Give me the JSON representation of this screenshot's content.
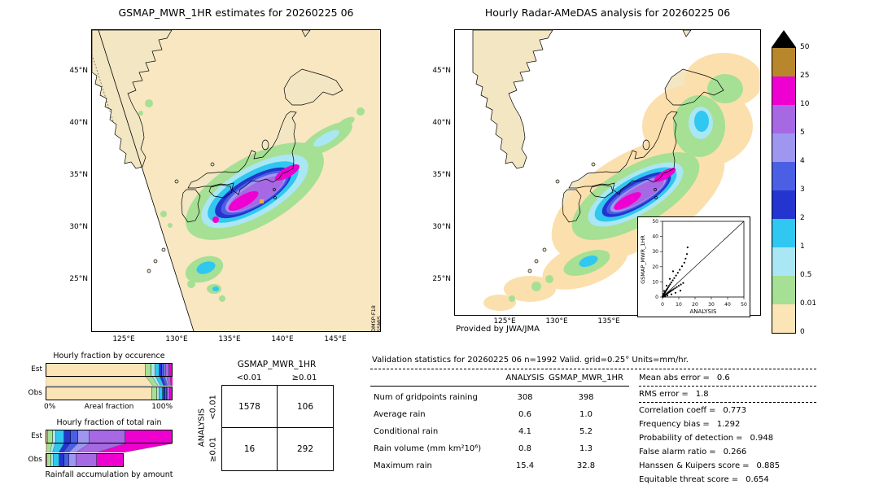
{
  "chart_data": [
    {
      "type": "heatmap",
      "name": "gsmap-mwr-estimate-map",
      "title": "GSMAP_MWR_1HR estimates for 20260225 06",
      "units": "mm/hr",
      "levels": [
        0,
        0.01,
        0.5,
        1,
        2,
        3,
        4,
        5,
        10,
        25,
        50
      ],
      "level_colors": [
        "#fbe4b6",
        "#a5e094",
        "#a9e7f4",
        "#30c7f0",
        "#2334cf",
        "#4a5fe4",
        "#9f97ef",
        "#a768e4",
        "#ee00d0",
        "#b8872c"
      ],
      "over_color": "#000000",
      "lat_ticks": [
        "45°N",
        "40°N",
        "35°N",
        "30°N",
        "25°N"
      ],
      "lon_ticks": [
        "125°E",
        "130°E",
        "135°E",
        "140°E",
        "145°E"
      ],
      "satellite": [
        "DMSP-F18",
        "SSMIS"
      ]
    },
    {
      "type": "heatmap",
      "name": "radar-amedas-analysis-map",
      "title": "Hourly Radar-AMeDAS analysis for 20260225 06",
      "units": "mm/hr",
      "levels": [
        0,
        0.01,
        0.5,
        1,
        2,
        3,
        4,
        5,
        10,
        25,
        50
      ],
      "lat_ticks": [
        "45°N",
        "40°N",
        "35°N",
        "30°N",
        "25°N"
      ],
      "lon_ticks": [
        "125°E",
        "130°E",
        "135°E"
      ],
      "credit": "Provided by JWA/JMA"
    },
    {
      "type": "scatter",
      "name": "gsmap-vs-analysis-inset",
      "xlabel": "ANALYSIS",
      "ylabel": "GSMAP_MWR_1HR",
      "xlim": [
        0,
        50
      ],
      "ylim": [
        0,
        50
      ],
      "ticks": [
        0,
        10,
        20,
        30,
        40,
        50
      ],
      "one_to_one_line": true,
      "points": [
        [
          0.1,
          0.2
        ],
        [
          0.2,
          0.1
        ],
        [
          0.2,
          0.5
        ],
        [
          0.3,
          0.3
        ],
        [
          0.4,
          0.8
        ],
        [
          0.4,
          0.2
        ],
        [
          0.5,
          0.5
        ],
        [
          0.5,
          1.2
        ],
        [
          0.6,
          0.3
        ],
        [
          0.7,
          1.5
        ],
        [
          0.8,
          0.6
        ],
        [
          0.9,
          1.9
        ],
        [
          1.0,
          0.8
        ],
        [
          1.1,
          2.3
        ],
        [
          1.2,
          1.0
        ],
        [
          1.4,
          2.8
        ],
        [
          1.5,
          1.2
        ],
        [
          1.7,
          3.3
        ],
        [
          1.8,
          1.5
        ],
        [
          2.0,
          3.9
        ],
        [
          2.2,
          1.8
        ],
        [
          2.4,
          4.6
        ],
        [
          2.6,
          2.1
        ],
        [
          2.9,
          5.4
        ],
        [
          3.1,
          2.5
        ],
        [
          3.4,
          6.3
        ],
        [
          3.7,
          2.9
        ],
        [
          4.0,
          7.3
        ],
        [
          4.3,
          3.4
        ],
        [
          4.7,
          8.4
        ],
        [
          5.0,
          3.9
        ],
        [
          5.4,
          9.6
        ],
        [
          5.8,
          4.5
        ],
        [
          6.3,
          11.0
        ],
        [
          6.7,
          5.1
        ],
        [
          7.2,
          12.5
        ],
        [
          7.7,
          5.8
        ],
        [
          8.3,
          14.2
        ],
        [
          8.8,
          6.6
        ],
        [
          9.4,
          16.0
        ],
        [
          10.0,
          7.4
        ],
        [
          10.6,
          18.0
        ],
        [
          11.3,
          8.3
        ],
        [
          12.0,
          20.3
        ],
        [
          12.7,
          9.3
        ],
        [
          13.4,
          22.7
        ],
        [
          14.2,
          25.4
        ],
        [
          15.0,
          28.4
        ],
        [
          15.4,
          32.8
        ],
        [
          0.3,
          1.0
        ],
        [
          0.8,
          2.2
        ],
        [
          1.6,
          0.4
        ],
        [
          3.0,
          1.0
        ],
        [
          5.5,
          1.8
        ],
        [
          8.0,
          2.8
        ],
        [
          11.0,
          4.2
        ],
        [
          2.5,
          7.5
        ],
        [
          4.5,
          12.0
        ],
        [
          6.5,
          17.0
        ],
        [
          1.0,
          4.0
        ]
      ]
    },
    {
      "type": "bar",
      "name": "hourly-fraction-by-occurrence",
      "title": "Hourly fraction by occurence",
      "stacked": true,
      "orientation": "horizontal",
      "categories": [
        "Est",
        "Obs"
      ],
      "axis": {
        "min": "0%",
        "label": "Areal fraction",
        "max": "100%"
      },
      "classes": [
        "no rain",
        "0.01-0.5",
        "0.5-1",
        "1-2",
        "2-3",
        "3-4",
        "4-5",
        "5-10",
        "10-25"
      ],
      "colors": [
        "#fbe4b6",
        "#a5e094",
        "#a9e7f4",
        "#30c7f0",
        "#2334cf",
        "#4a5fe4",
        "#9f97ef",
        "#a768e4",
        "#ee00d0"
      ],
      "est": [
        0.79,
        0.05,
        0.028,
        0.032,
        0.02,
        0.02,
        0.015,
        0.025,
        0.02
      ],
      "obs": [
        0.845,
        0.04,
        0.018,
        0.027,
        0.015,
        0.015,
        0.01,
        0.017,
        0.013
      ],
      "bar_scale": {
        "est": 1.0,
        "obs": 1.0
      }
    },
    {
      "type": "bar",
      "name": "hourly-fraction-of-total-rain",
      "title": "Hourly fraction of total rain",
      "caption": "Rainfall accumulation by amount",
      "stacked": true,
      "orientation": "horizontal",
      "categories": [
        "Est",
        "Obs"
      ],
      "classes": [
        "no rain",
        "0.01-0.5",
        "0.5-1",
        "1-2",
        "2-3",
        "3-4",
        "4-5",
        "5-10",
        "10-25"
      ],
      "colors": [
        "#fbe4b6",
        "#a5e094",
        "#a9e7f4",
        "#30c7f0",
        "#2334cf",
        "#4a5fe4",
        "#9f97ef",
        "#a768e4",
        "#ee00d0"
      ],
      "est": [
        0.01,
        0.04,
        0.025,
        0.07,
        0.05,
        0.06,
        0.09,
        0.285,
        0.37
      ],
      "obs": [
        0.01,
        0.05,
        0.03,
        0.08,
        0.06,
        0.07,
        0.09,
        0.27,
        0.34
      ],
      "bar_scale": {
        "est": 1.0,
        "obs": 0.615
      }
    },
    {
      "type": "table",
      "name": "contingency-table",
      "title": "GSMAP_MWR_1HR",
      "row_axis": "ANALYSIS",
      "columns": [
        "<0.01",
        "≥0.01"
      ],
      "rows": [
        "<0.01",
        "≥0.01"
      ],
      "values": [
        [
          "1578",
          "106"
        ],
        [
          "16",
          "292"
        ]
      ]
    },
    {
      "type": "table",
      "name": "validation-statistics",
      "header": "Validation statistics for 20260225 06  n=1992 Valid. grid=0.25° Units=mm/hr.",
      "columns": [
        "ANALYSIS",
        "GSMAP_MWR_1HR"
      ],
      "eq": "=",
      "rows": [
        {
          "label": "Num of gridpoints raining",
          "analysis": "308",
          "gsmap": "398"
        },
        {
          "label": "Average rain",
          "analysis": "0.6",
          "gsmap": "1.0"
        },
        {
          "label": "Conditional rain",
          "analysis": "4.1",
          "gsmap": "5.2"
        },
        {
          "label": "Rain volume (mm km²10⁶)",
          "analysis": "0.8",
          "gsmap": "1.3"
        },
        {
          "label": "Maximum rain",
          "analysis": "15.4",
          "gsmap": "32.8"
        }
      ],
      "scores": [
        {
          "label": "Mean abs error",
          "value": "0.6"
        },
        {
          "label": "RMS error",
          "value": "1.8"
        },
        {
          "label": "Correlation coeff",
          "value": "0.773"
        },
        {
          "label": "Frequency bias",
          "value": "1.292"
        },
        {
          "label": "Probability of detection",
          "value": "0.948"
        },
        {
          "label": "False alarm ratio",
          "value": "0.266"
        },
        {
          "label": "Hanssen & Kuipers score",
          "value": "0.885"
        },
        {
          "label": "Equitable threat score",
          "value": "0.654"
        }
      ]
    }
  ]
}
